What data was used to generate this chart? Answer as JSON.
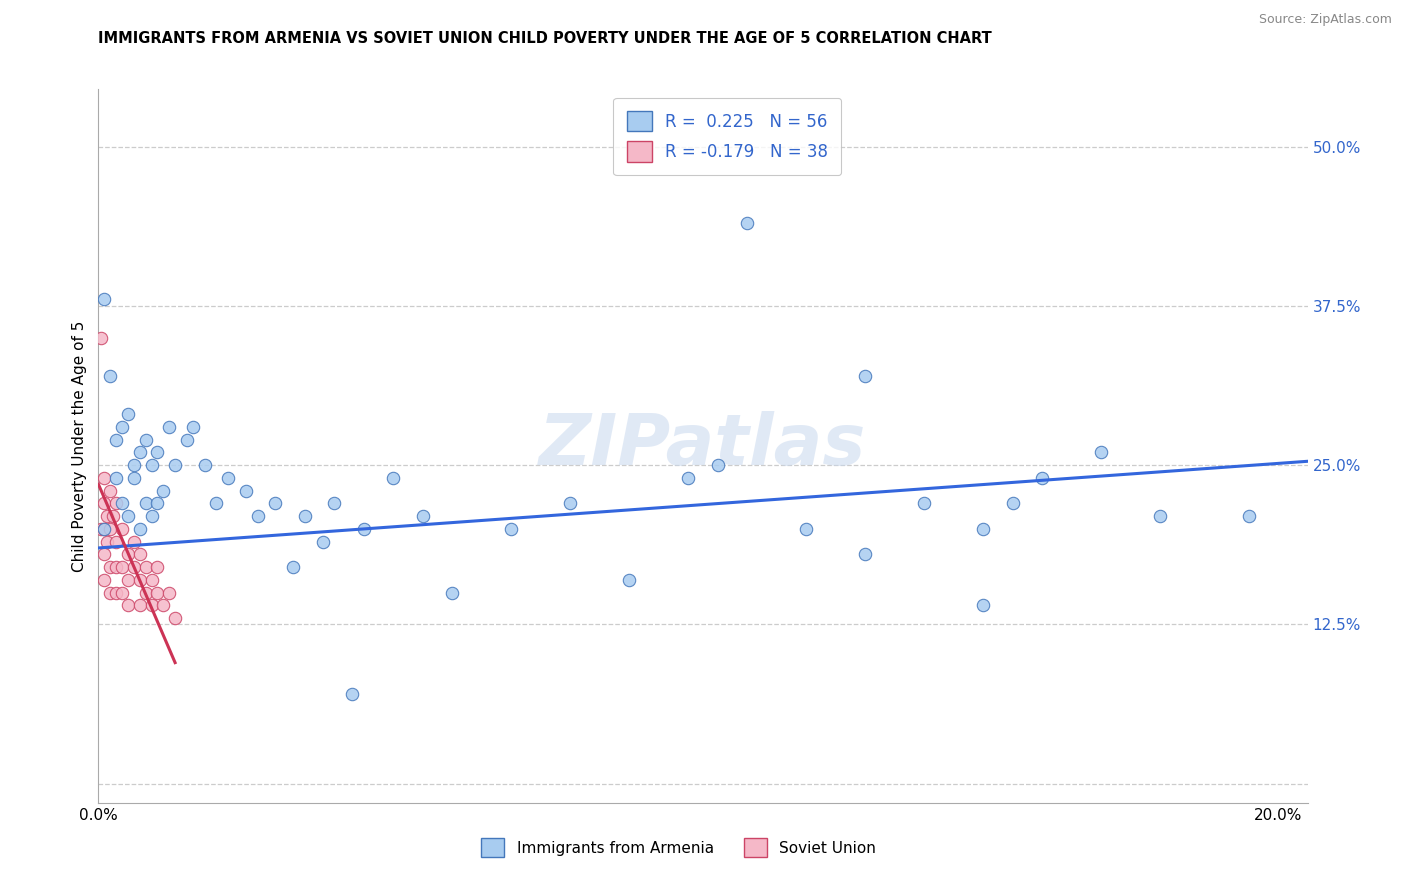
{
  "title": "IMMIGRANTS FROM ARMENIA VS SOVIET UNION CHILD POVERTY UNDER THE AGE OF 5 CORRELATION CHART",
  "source": "Source: ZipAtlas.com",
  "ylabel_label": "Child Poverty Under the Age of 5",
  "xlim": [
    0.0,
    0.205
  ],
  "ylim": [
    -0.015,
    0.545
  ],
  "armenia_fill": "#a8ccf0",
  "armenia_edge": "#4477bb",
  "soviet_fill": "#f5b8c8",
  "soviet_edge": "#cc4466",
  "trendline_armenia_color": "#3366dd",
  "trendline_soviet_color": "#cc3355",
  "watermark": "ZIPatlas",
  "legend_R_armenia": "R =  0.225",
  "legend_N_armenia": "N = 56",
  "legend_R_soviet": "R = -0.179",
  "legend_N_soviet": "N = 38",
  "armenia_x": [
    0.001,
    0.001,
    0.002,
    0.003,
    0.003,
    0.004,
    0.004,
    0.005,
    0.005,
    0.006,
    0.006,
    0.007,
    0.007,
    0.008,
    0.008,
    0.009,
    0.009,
    0.01,
    0.01,
    0.011,
    0.012,
    0.013,
    0.015,
    0.016,
    0.018,
    0.02,
    0.022,
    0.025,
    0.027,
    0.03,
    0.033,
    0.035,
    0.038,
    0.04,
    0.045,
    0.05,
    0.055,
    0.06,
    0.07,
    0.08,
    0.09,
    0.1,
    0.11,
    0.12,
    0.13,
    0.14,
    0.15,
    0.16,
    0.17,
    0.18,
    0.043,
    0.105,
    0.155,
    0.195,
    0.13,
    0.15
  ],
  "armenia_y": [
    0.38,
    0.2,
    0.32,
    0.27,
    0.24,
    0.28,
    0.22,
    0.29,
    0.21,
    0.25,
    0.24,
    0.26,
    0.2,
    0.27,
    0.22,
    0.25,
    0.21,
    0.26,
    0.22,
    0.23,
    0.28,
    0.25,
    0.27,
    0.28,
    0.25,
    0.22,
    0.24,
    0.23,
    0.21,
    0.22,
    0.17,
    0.21,
    0.19,
    0.22,
    0.2,
    0.24,
    0.21,
    0.15,
    0.2,
    0.22,
    0.16,
    0.24,
    0.44,
    0.2,
    0.32,
    0.22,
    0.2,
    0.24,
    0.26,
    0.21,
    0.07,
    0.25,
    0.22,
    0.21,
    0.18,
    0.14
  ],
  "soviet_x": [
    0.0005,
    0.0005,
    0.001,
    0.001,
    0.001,
    0.001,
    0.001,
    0.0015,
    0.0015,
    0.002,
    0.002,
    0.002,
    0.002,
    0.0025,
    0.003,
    0.003,
    0.003,
    0.003,
    0.004,
    0.004,
    0.004,
    0.005,
    0.005,
    0.005,
    0.006,
    0.006,
    0.007,
    0.007,
    0.007,
    0.008,
    0.008,
    0.009,
    0.009,
    0.01,
    0.01,
    0.011,
    0.012,
    0.013
  ],
  "soviet_y": [
    0.2,
    0.35,
    0.22,
    0.2,
    0.24,
    0.18,
    0.16,
    0.21,
    0.19,
    0.23,
    0.2,
    0.17,
    0.15,
    0.21,
    0.22,
    0.19,
    0.17,
    0.15,
    0.2,
    0.17,
    0.15,
    0.18,
    0.16,
    0.14,
    0.19,
    0.17,
    0.18,
    0.16,
    0.14,
    0.17,
    0.15,
    0.16,
    0.14,
    0.17,
    0.15,
    0.14,
    0.15,
    0.13
  ],
  "trendline_armenia_x0": 0.0,
  "trendline_armenia_x1": 0.205,
  "trendline_armenia_y0": 0.185,
  "trendline_armenia_y1": 0.253,
  "trendline_soviet_x0": 0.0,
  "trendline_soviet_x1": 0.013,
  "trendline_soviet_y0": 0.235,
  "trendline_soviet_y1": 0.095
}
